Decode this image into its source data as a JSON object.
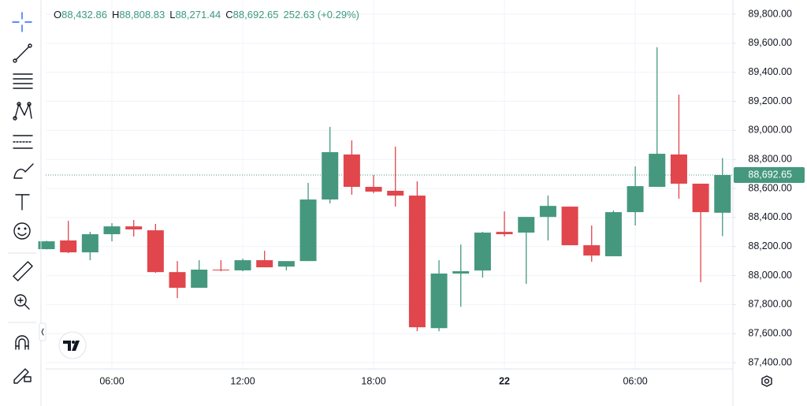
{
  "chart_data": {
    "type": "candlestick",
    "ohlc_legend": [
      {
        "label": "O",
        "value": "88,432.86"
      },
      {
        "label": "H",
        "value": "88,808.83"
      },
      {
        "label": "L",
        "value": "88,271.44"
      },
      {
        "label": "C",
        "value": "88,692.65"
      }
    ],
    "change": "252.63 (+0.29%)",
    "categories": [
      null,
      null,
      null,
      "06:00",
      null,
      null,
      null,
      null,
      null,
      "12:00",
      null,
      null,
      null,
      null,
      null,
      "18:00",
      null,
      null,
      null,
      null,
      null,
      "22",
      null,
      null,
      null,
      null,
      null,
      "06:00",
      null,
      null,
      null,
      null
    ],
    "series": [
      {
        "up_color": "#45987e",
        "down_color": "#e0464c",
        "open": [
          88182,
          88242,
          88160,
          88285,
          88339,
          88312,
          88024,
          87916,
          88041,
          88036,
          88106,
          88062,
          88100,
          88524,
          88834,
          88611,
          88584,
          88551,
          87638,
          88014,
          88035,
          88301,
          88296,
          88404,
          88475,
          88209,
          88133,
          88437,
          88611,
          88834,
          88633,
          88432.86
        ],
        "high": [
          88240,
          88377,
          88301,
          88361,
          88383,
          88356,
          88100,
          88106,
          88106,
          88117,
          88171,
          88100,
          88638,
          89024,
          88931,
          88692,
          88888,
          88649,
          88106,
          88214,
          88301,
          88442,
          88404,
          88551,
          88475,
          88345,
          88448,
          88752,
          89572,
          89246,
          88633,
          88808.83
        ],
        "low": [
          88180,
          88155,
          88106,
          88236,
          88269,
          88019,
          87845,
          87916,
          88030,
          88030,
          88057,
          88036,
          88100,
          88497,
          88557,
          88567,
          88475,
          87617,
          87617,
          87785,
          87986,
          88269,
          87943,
          88242,
          88209,
          88095,
          88133,
          88345,
          88611,
          88529,
          87954,
          88271.44
        ],
        "close": [
          88236,
          88160,
          88285,
          88339,
          88318,
          88024,
          87916,
          88041,
          88036,
          88106,
          88057,
          88100,
          88524,
          88850,
          88611,
          88578,
          88551,
          87644,
          88014,
          88030,
          88296,
          88285,
          88404,
          88480,
          88209,
          88138,
          88437,
          88616,
          88839,
          88633,
          88437,
          88692.65
        ]
      }
    ],
    "ylim": [
      87357,
      89898
    ],
    "yticks": [
      {
        "value": 87400,
        "label": "87,400.00"
      },
      {
        "value": 87600,
        "label": "87,600.00"
      },
      {
        "value": 87800,
        "label": "87,800.00"
      },
      {
        "value": 88000,
        "label": "88,000.00"
      },
      {
        "value": 88200,
        "label": "88,200.00"
      },
      {
        "value": 88400,
        "label": "88,400.00"
      },
      {
        "value": 88600,
        "label": "88,600.00"
      },
      {
        "value": 88800,
        "label": "88,800.00"
      },
      {
        "value": 89000,
        "label": "89,000.00"
      },
      {
        "value": 89200,
        "label": "89,200.00"
      },
      {
        "value": 89400,
        "label": "89,400.00"
      },
      {
        "value": 89600,
        "label": "89,600.00"
      },
      {
        "value": 89800,
        "label": "89,800.00"
      }
    ],
    "last_price": {
      "value": 88692.65,
      "label": "88,692.65"
    },
    "grid": true
  }
}
